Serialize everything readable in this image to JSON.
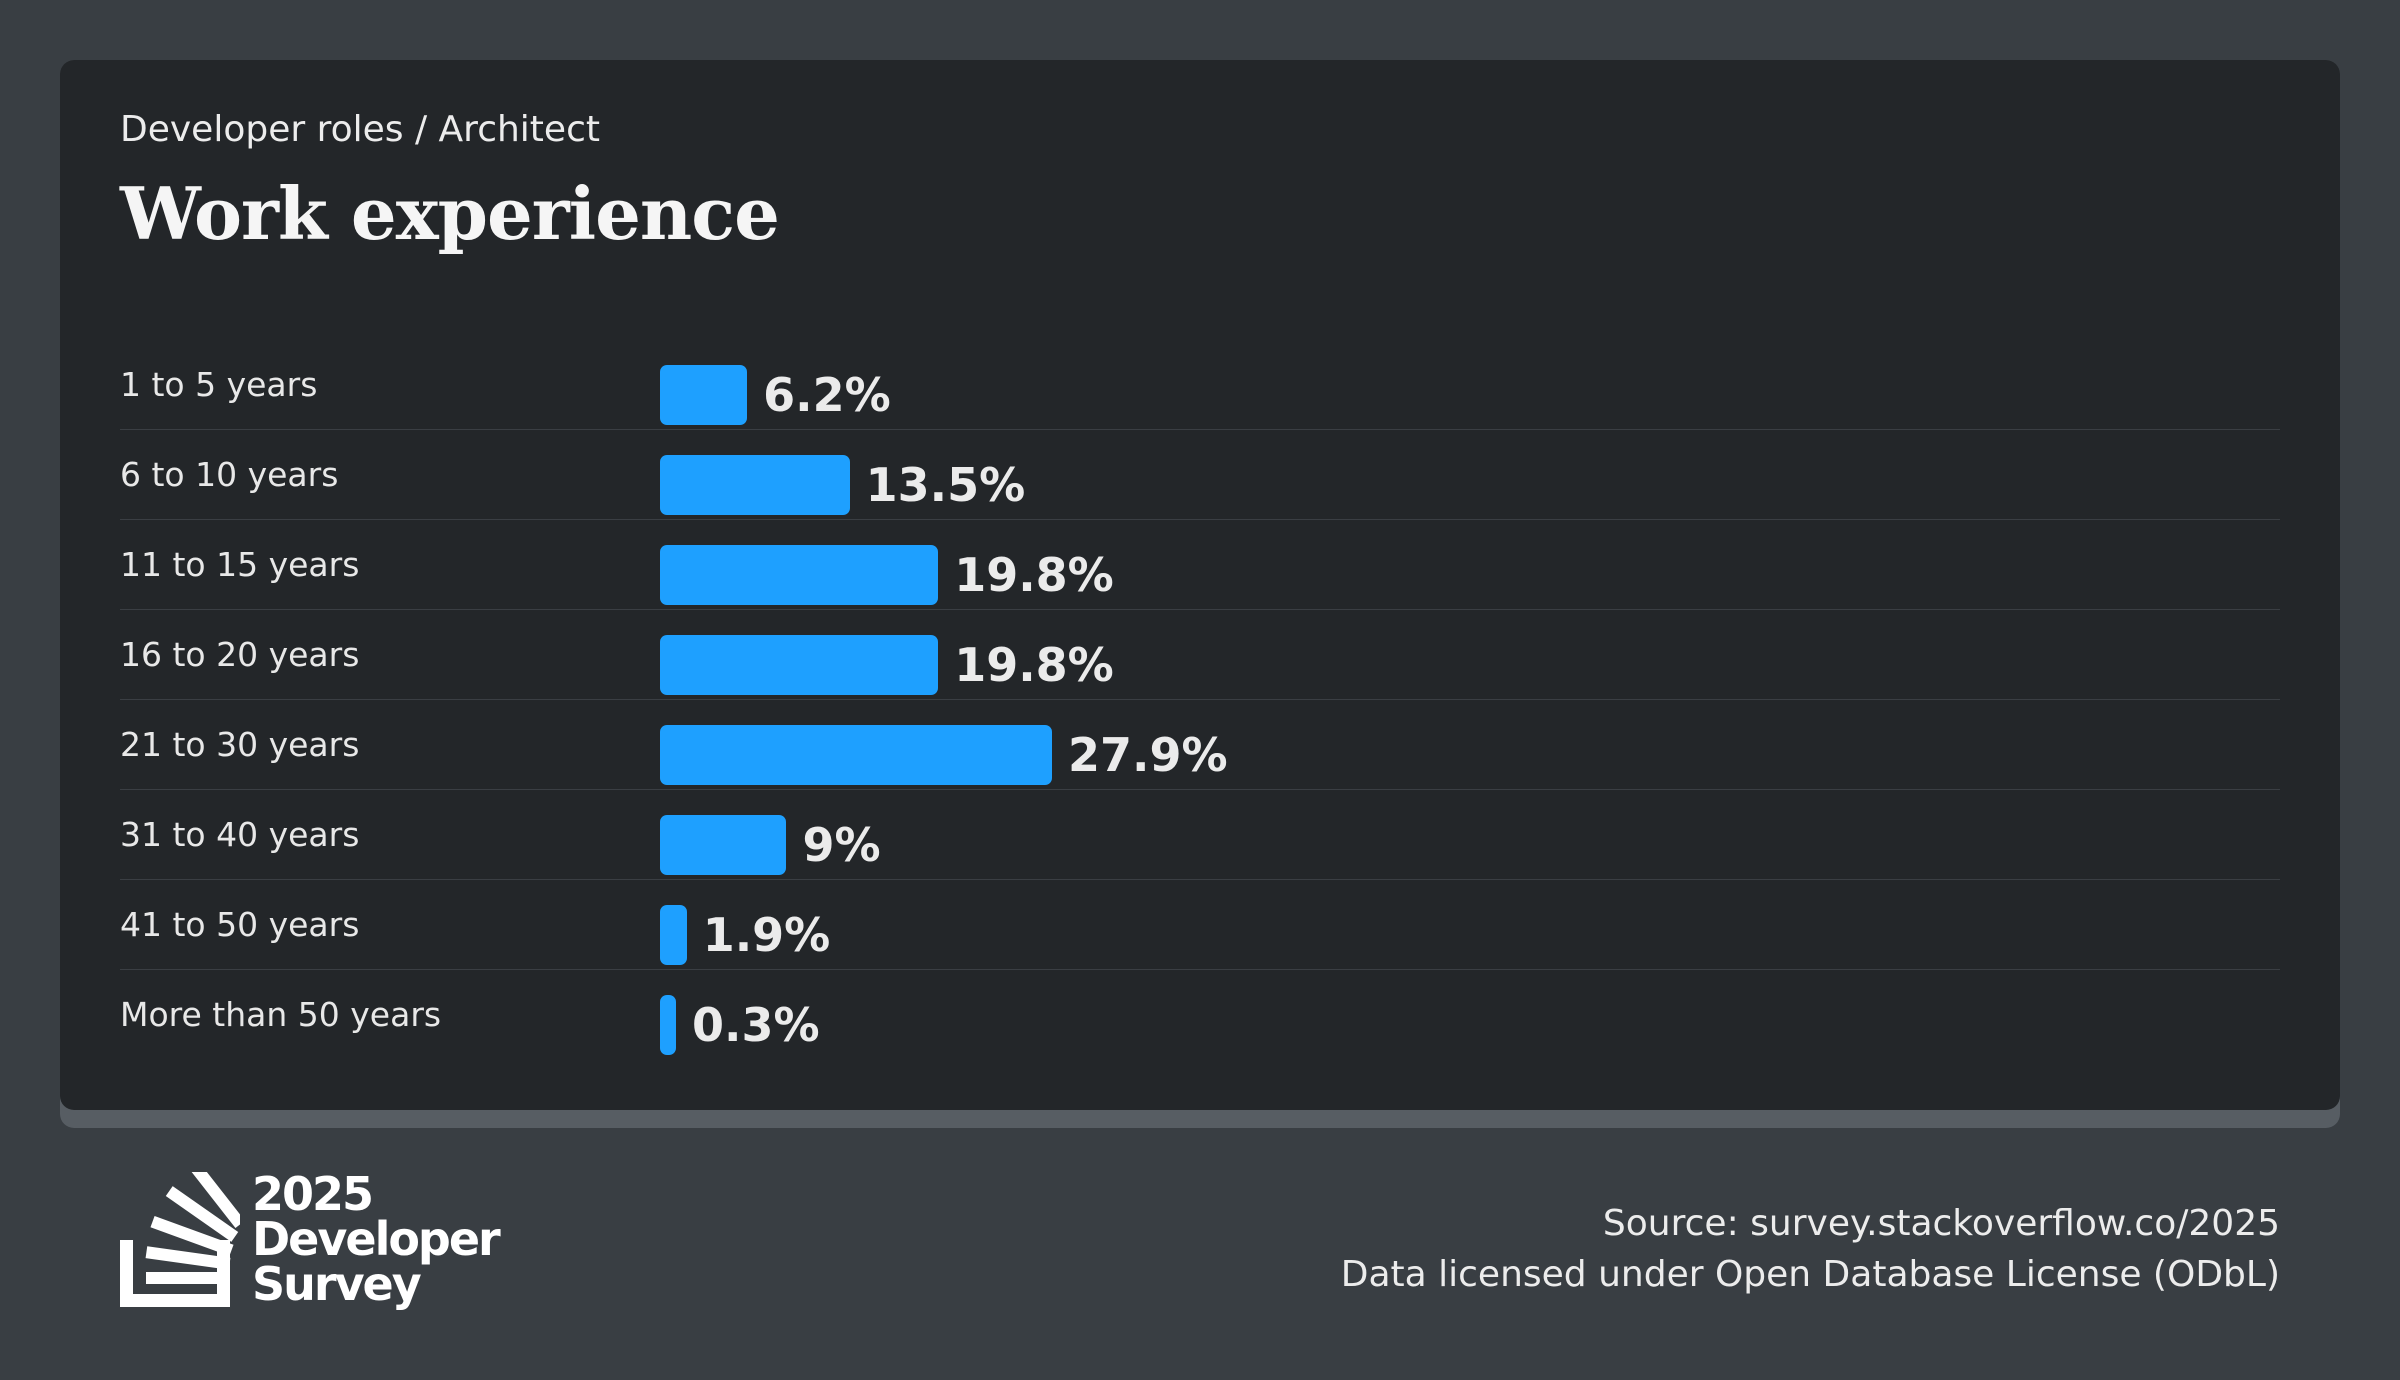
{
  "header": {
    "breadcrumb": "Developer roles / Architect",
    "title": "Work experience"
  },
  "chart_data": {
    "type": "bar",
    "orientation": "horizontal",
    "title": "Work experience",
    "categories": [
      "1 to 5 years",
      "6 to 10 years",
      "11 to 15 years",
      "16 to 20 years",
      "21 to 30 years",
      "31 to 40 years",
      "41 to 50 years",
      "More than 50 years"
    ],
    "values": [
      6.2,
      13.5,
      19.8,
      19.8,
      27.9,
      9,
      1.9,
      0.3
    ],
    "value_labels": [
      "6.2%",
      "13.5%",
      "19.8%",
      "19.8%",
      "27.9%",
      "9%",
      "1.9%",
      "0.3%"
    ],
    "unit": "%",
    "bar_color": "#1ea0ff",
    "grid": false,
    "legend": "none"
  },
  "footer": {
    "logo_lines": [
      "2025",
      "Developer",
      "Survey"
    ],
    "source": "Source: survey.stackoverflow.co/2025",
    "license": "Data licensed under Open Database License (ODbL)"
  },
  "colors": {
    "background": "#393e43",
    "card": "#232629",
    "accent": "#1ea0ff",
    "text": "#ececec"
  }
}
